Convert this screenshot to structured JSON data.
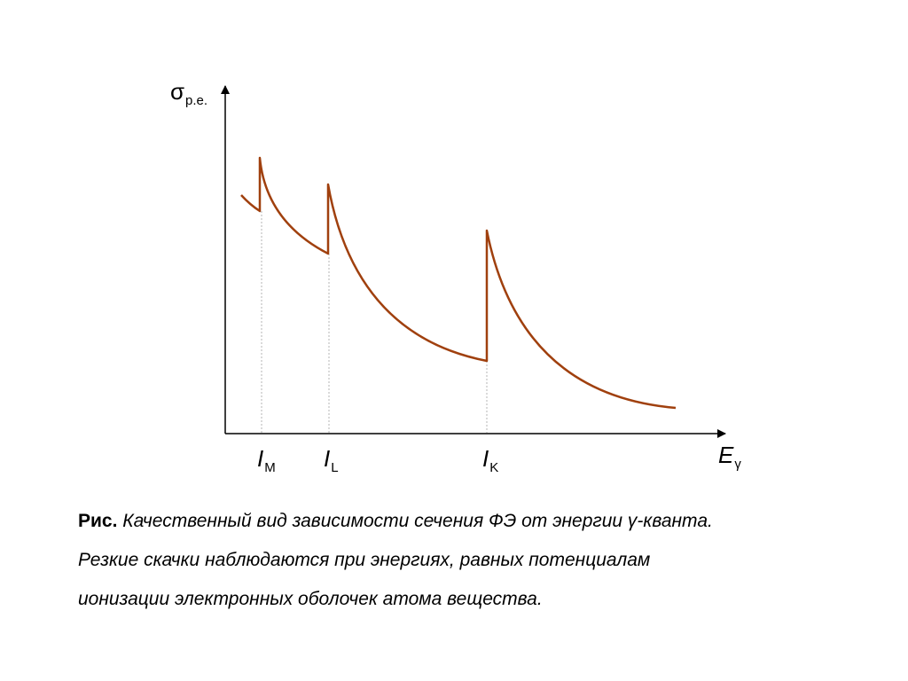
{
  "figure": {
    "y_axis": {
      "symbol": "σ",
      "subscript": "p.e."
    },
    "x_axis": {
      "symbol": "E",
      "subscript": "γ"
    },
    "edges": [
      {
        "symbol": "I",
        "subscript": "M"
      },
      {
        "symbol": "I",
        "subscript": "L"
      },
      {
        "symbol": "I",
        "subscript": "K"
      }
    ],
    "curve_color": "#a0400e",
    "axis_color": "#000000",
    "guide_color": "#b5b5b5"
  },
  "caption": {
    "prefix": "Рис.",
    "line1": "Качественный вид зависимости сечения ФЭ от энергии γ-кванта.",
    "line2": "Резкие скачки наблюдаются при энергиях, равных потенциалам",
    "line3": "ионизации электронных оболочек атома вещества."
  }
}
